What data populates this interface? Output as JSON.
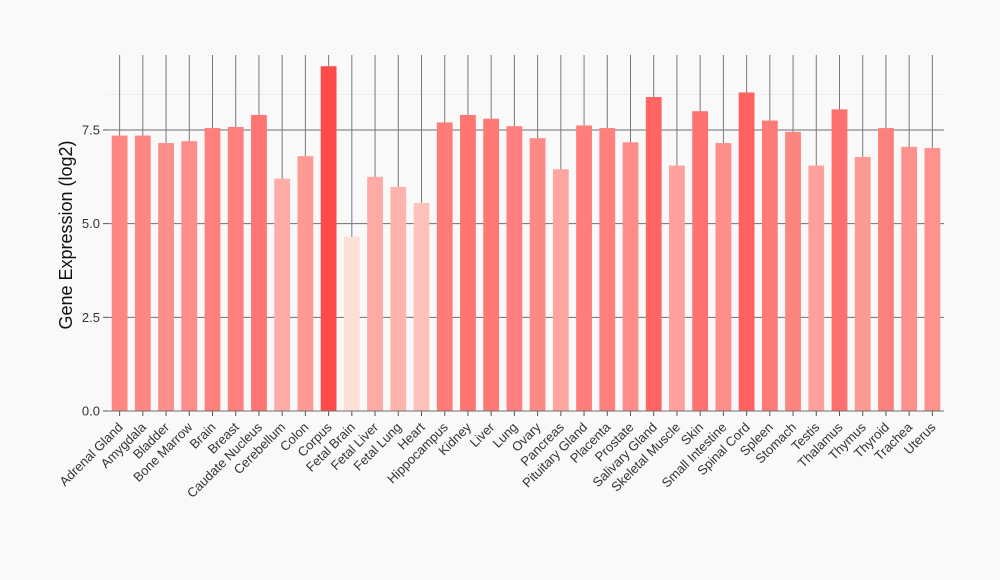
{
  "chart_data": {
    "type": "bar",
    "title": "",
    "xlabel": "",
    "ylabel": "Gene Expression (log2)",
    "ylim": [
      0,
      9.5
    ],
    "yticks": [
      0.0,
      2.5,
      5.0,
      7.5
    ],
    "ytick_labels": [
      "0.0",
      "2.5",
      "5.0",
      "7.5"
    ],
    "grid": true,
    "categories": [
      "Adrenal Gland",
      "Amygdala",
      "Bladder",
      "Bone Marrow",
      "Brain",
      "Breast",
      "Caudate Nucleus",
      "Cerebellum",
      "Colon",
      "Corpus",
      "Fetal Brain",
      "Fetal Liver",
      "Fetal Lung",
      "Heart",
      "Hippocampus",
      "Kidney",
      "Liver",
      "Lung",
      "Ovary",
      "Pancreas",
      "Pituitary Gland",
      "Placenta",
      "Prostate",
      "Salivary Gland",
      "Skeletal Muscle",
      "Skin",
      "Small Intestine",
      "Spinal Cord",
      "Spleen",
      "Stomach",
      "Testis",
      "Thalamus",
      "Thymus",
      "Thyroid",
      "Trachea",
      "Uterus"
    ],
    "values": [
      7.35,
      7.35,
      7.15,
      7.2,
      7.55,
      7.58,
      7.9,
      6.2,
      6.8,
      9.2,
      4.65,
      6.25,
      5.98,
      5.55,
      7.7,
      7.9,
      7.8,
      7.6,
      7.28,
      6.45,
      7.62,
      7.55,
      7.17,
      8.38,
      6.55,
      8.0,
      7.15,
      8.5,
      7.75,
      7.45,
      6.55,
      8.05,
      6.78,
      7.55,
      7.05,
      7.02
    ],
    "color_scale": {
      "low": "#fde0d6",
      "high": "#ff4a4a"
    }
  }
}
